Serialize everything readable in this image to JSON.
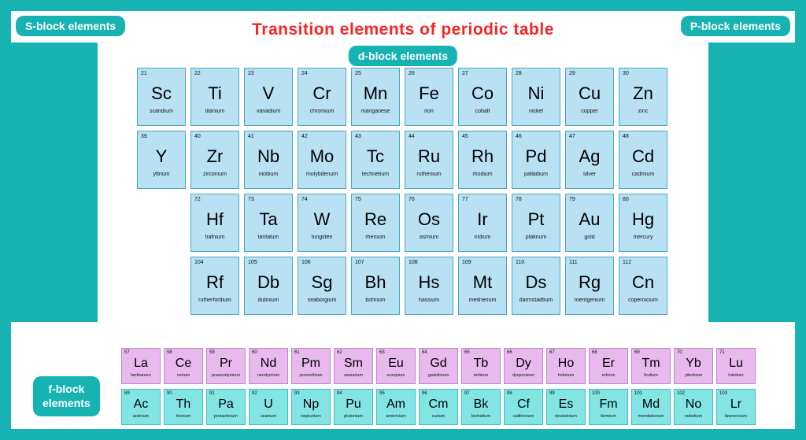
{
  "title": "Transition elements of periodic table",
  "colors": {
    "border": "#17b3b3",
    "bg": "#ffffff",
    "title": "#f52626",
    "pill": "#17b3b3",
    "side_block": "#17b3b3",
    "d_cell_bg": "#b8e1f4",
    "d_cell_border": "#4aa7c4",
    "lan_bg": "#e7b9ec",
    "lan_border": "#c485cd",
    "act_bg": "#83e4e4",
    "act_border": "#3cc0c0"
  },
  "pills": {
    "s_block": "S-block elements",
    "p_block": "P-block elements",
    "d_block": "d-block elements",
    "f_block_line1": "f-block",
    "f_block_line2": "elements"
  },
  "d_block": [
    {
      "n": 21,
      "s": "Sc",
      "name": "scandium"
    },
    {
      "n": 22,
      "s": "Ti",
      "name": "titanium"
    },
    {
      "n": 23,
      "s": "V",
      "name": "vanadium"
    },
    {
      "n": 24,
      "s": "Cr",
      "name": "chromium"
    },
    {
      "n": 25,
      "s": "Mn",
      "name": "manganese"
    },
    {
      "n": 26,
      "s": "Fe",
      "name": "iron"
    },
    {
      "n": 27,
      "s": "Co",
      "name": "cobalt"
    },
    {
      "n": 28,
      "s": "Ni",
      "name": "nickel"
    },
    {
      "n": 29,
      "s": "Cu",
      "name": "copper"
    },
    {
      "n": 30,
      "s": "Zn",
      "name": "zinc"
    },
    {
      "n": 39,
      "s": "Y",
      "name": "yttrium"
    },
    {
      "n": 40,
      "s": "Zr",
      "name": "zirconium"
    },
    {
      "n": 41,
      "s": "Nb",
      "name": "niobium"
    },
    {
      "n": 42,
      "s": "Mo",
      "name": "molybdenum"
    },
    {
      "n": 43,
      "s": "Tc",
      "name": "technetium"
    },
    {
      "n": 44,
      "s": "Ru",
      "name": "ruthenium"
    },
    {
      "n": 45,
      "s": "Rh",
      "name": "rhodium"
    },
    {
      "n": 46,
      "s": "Pd",
      "name": "palladium"
    },
    {
      "n": 47,
      "s": "Ag",
      "name": "silver"
    },
    {
      "n": 48,
      "s": "Cd",
      "name": "cadmium"
    },
    {
      "n": 72,
      "s": "Hf",
      "name": "hafnium"
    },
    {
      "n": 73,
      "s": "Ta",
      "name": "tantalum"
    },
    {
      "n": 74,
      "s": "W",
      "name": "tungsten"
    },
    {
      "n": 75,
      "s": "Re",
      "name": "rhenium"
    },
    {
      "n": 76,
      "s": "Os",
      "name": "osmium"
    },
    {
      "n": 77,
      "s": "Ir",
      "name": "iridium"
    },
    {
      "n": 78,
      "s": "Pt",
      "name": "platinum"
    },
    {
      "n": 79,
      "s": "Au",
      "name": "gold"
    },
    {
      "n": 80,
      "s": "Hg",
      "name": "mercury"
    },
    {
      "n": 104,
      "s": "Rf",
      "name": "rutherfordium"
    },
    {
      "n": 105,
      "s": "Db",
      "name": "dubnium"
    },
    {
      "n": 106,
      "s": "Sg",
      "name": "seaborgium"
    },
    {
      "n": 107,
      "s": "Bh",
      "name": "bohrium"
    },
    {
      "n": 108,
      "s": "Hs",
      "name": "hassium"
    },
    {
      "n": 109,
      "s": "Mt",
      "name": "meitnerium"
    },
    {
      "n": 110,
      "s": "Ds",
      "name": "darmstadtium"
    },
    {
      "n": 111,
      "s": "Rg",
      "name": "roentgenium"
    },
    {
      "n": 112,
      "s": "Cn",
      "name": "copernicium"
    }
  ],
  "lanthanides": [
    {
      "n": 57,
      "s": "La",
      "name": "lanthanum"
    },
    {
      "n": 58,
      "s": "Ce",
      "name": "cerium"
    },
    {
      "n": 59,
      "s": "Pr",
      "name": "praseodymium"
    },
    {
      "n": 60,
      "s": "Nd",
      "name": "neodymium"
    },
    {
      "n": 61,
      "s": "Pm",
      "name": "promethium"
    },
    {
      "n": 62,
      "s": "Sm",
      "name": "samarium"
    },
    {
      "n": 63,
      "s": "Eu",
      "name": "europium"
    },
    {
      "n": 64,
      "s": "Gd",
      "name": "gadolinium"
    },
    {
      "n": 65,
      "s": "Tb",
      "name": "terbium"
    },
    {
      "n": 66,
      "s": "Dy",
      "name": "dysprosium"
    },
    {
      "n": 67,
      "s": "Ho",
      "name": "holmium"
    },
    {
      "n": 68,
      "s": "Er",
      "name": "erbium"
    },
    {
      "n": 69,
      "s": "Tm",
      "name": "thulium"
    },
    {
      "n": 70,
      "s": "Yb",
      "name": "ytterbium"
    },
    {
      "n": 71,
      "s": "Lu",
      "name": "lutetium"
    }
  ],
  "actinides": [
    {
      "n": 89,
      "s": "Ac",
      "name": "actinium"
    },
    {
      "n": 90,
      "s": "Th",
      "name": "thorium"
    },
    {
      "n": 91,
      "s": "Pa",
      "name": "protactinium"
    },
    {
      "n": 92,
      "s": "U",
      "name": "uranium"
    },
    {
      "n": 93,
      "s": "Np",
      "name": "neptunium"
    },
    {
      "n": 94,
      "s": "Pu",
      "name": "plutonium"
    },
    {
      "n": 95,
      "s": "Am",
      "name": "americium"
    },
    {
      "n": 96,
      "s": "Cm",
      "name": "curium"
    },
    {
      "n": 97,
      "s": "Bk",
      "name": "berkelium"
    },
    {
      "n": 98,
      "s": "Cf",
      "name": "californium"
    },
    {
      "n": 99,
      "s": "Es",
      "name": "einsteinium"
    },
    {
      "n": 100,
      "s": "Fm",
      "name": "fermium"
    },
    {
      "n": 101,
      "s": "Md",
      "name": "mendelevium"
    },
    {
      "n": 102,
      "s": "No",
      "name": "nobelium"
    },
    {
      "n": 103,
      "s": "Lr",
      "name": "lawrencium"
    }
  ]
}
